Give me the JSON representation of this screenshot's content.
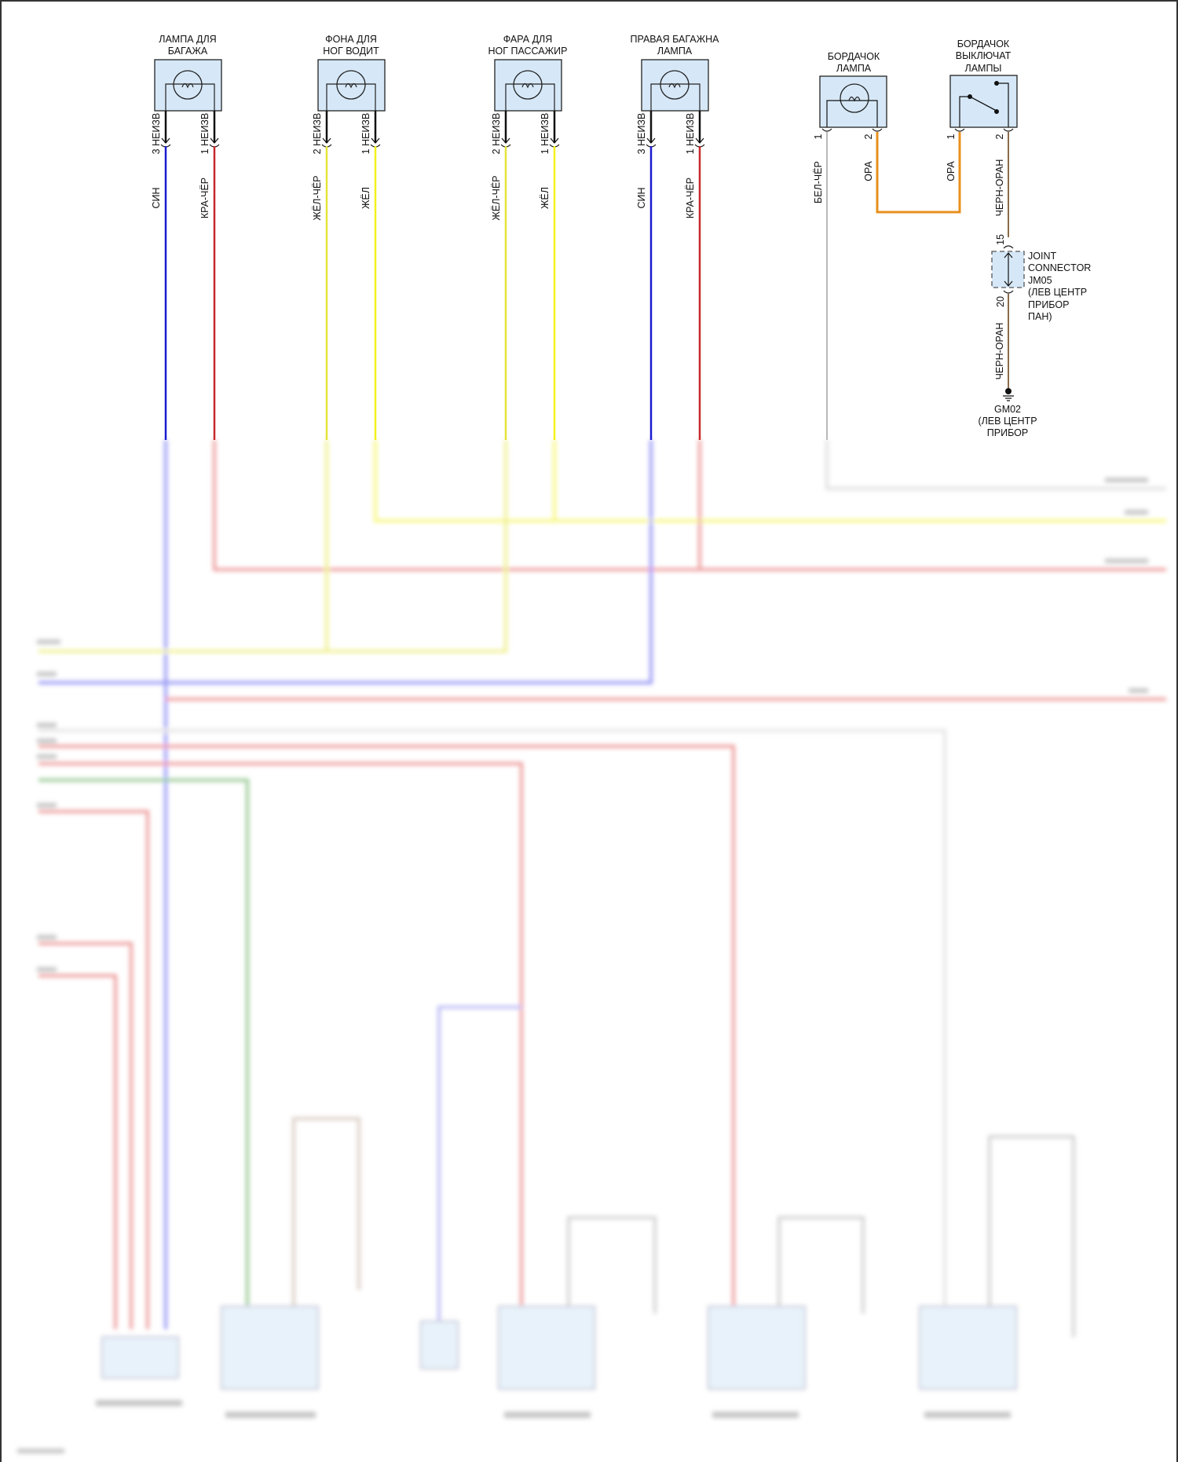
{
  "lamps": [
    {
      "title": [
        "ЛАМПА ДЛЯ",
        "БАГАЖА"
      ],
      "pins": [
        {
          "num": "3",
          "code": "НЕИЗВ",
          "color_label": "СИН",
          "wire_color": "#1a1ad0"
        },
        {
          "num": "1",
          "code": "НЕИЗВ",
          "color_label": "КРА-ЧЁР",
          "wire_color": "#c8282a"
        }
      ]
    },
    {
      "title": [
        "ФОНА ДЛЯ",
        "НОГ ВОДИТ"
      ],
      "pins": [
        {
          "num": "2",
          "code": "НЕИЗВ",
          "color_label": "ЖЁЛ-ЧЁР",
          "wire_color": "#e4e43a"
        },
        {
          "num": "1",
          "code": "НЕИЗВ",
          "color_label": "ЖЁЛ",
          "wire_color": "#f2f21a"
        }
      ]
    },
    {
      "title": [
        "ФАРА ДЛЯ",
        "НОГ ПАССАЖИР"
      ],
      "pins": [
        {
          "num": "2",
          "code": "НЕИЗВ",
          "color_label": "ЖЁЛ-ЧЁР",
          "wire_color": "#e4e43a"
        },
        {
          "num": "1",
          "code": "НЕИЗВ",
          "color_label": "ЖЁЛ",
          "wire_color": "#f2f21a"
        }
      ]
    },
    {
      "title": [
        "ПРАВАЯ БАГАЖНА",
        "ЛАМПА"
      ],
      "pins": [
        {
          "num": "3",
          "code": "НЕИЗВ",
          "color_label": "СИН",
          "wire_color": "#1a1ad0"
        },
        {
          "num": "1",
          "code": "НЕИЗВ",
          "color_label": "КРА-ЧЁР",
          "wire_color": "#c8282a"
        }
      ]
    }
  ],
  "glove_lamp": {
    "title": [
      "БОРДАЧОК",
      "ЛАМПА"
    ],
    "pin1": {
      "num": "1",
      "color_label": "БЕЛ-ЧЁР",
      "wire_color": "#b8b8b8"
    },
    "pin2": {
      "num": "2",
      "color_label": "ОРА",
      "wire_color": "#e8901c"
    }
  },
  "glove_switch": {
    "title": [
      "БОРДАЧОК",
      "ВЫКЛЮЧАТ",
      "ЛАМПЫ"
    ],
    "pin1": {
      "num": "1",
      "color_label": "ОРА",
      "wire_color": "#e8901c"
    },
    "pin2": {
      "num": "2",
      "color_label": "ЧЕРН-ОРАН",
      "wire_color": "#8a6a48"
    }
  },
  "joint_connector": {
    "pin_in": "15",
    "pin_out": "20",
    "label": [
      "JOINT",
      "CONNECTOR",
      "JM05",
      "(ЛЕВ ЦЕНТР",
      "ПРИБОР",
      "ПАН)"
    ],
    "out_color_label": "ЧЕРН-ОРАН"
  },
  "ground": {
    "label": [
      "GM02",
      "(ЛЕВ ЦЕНТР",
      "ПРИБОР"
    ]
  },
  "colors": {
    "box_fill": "#d6e8f8",
    "blue": "#1a1ad0",
    "red": "#c8282a",
    "yellow": "#f2f21a",
    "orange": "#e8901c",
    "green": "#3a9a2a",
    "grey": "#b8b8b8",
    "brown": "#8a6a48"
  }
}
